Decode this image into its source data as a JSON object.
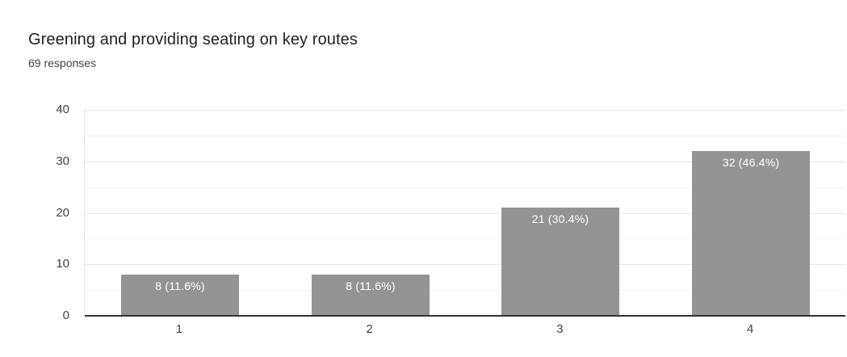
{
  "header": {
    "title": "Greening and providing seating on key routes",
    "subtitle": "69 responses"
  },
  "chart_data": {
    "type": "bar",
    "title": "Greening and providing seating on key routes",
    "subtitle": "69 responses",
    "categories": [
      "1",
      "2",
      "3",
      "4"
    ],
    "values": [
      8,
      8,
      21,
      32
    ],
    "bar_labels": [
      "8 (11.6%)",
      "8 (11.6%)",
      "21 (30.4%)",
      "32 (46.4%)"
    ],
    "total_responses": 69,
    "xlabel": "",
    "ylabel": "",
    "ylim": [
      0,
      40
    ],
    "yticks": [
      0,
      10,
      20,
      30,
      40
    ],
    "minor_yticks": [
      5,
      15,
      25,
      35
    ],
    "grid": true,
    "legend": "none",
    "colors": {
      "bar": "#949494",
      "bar_label_text": "#ffffff",
      "axis_line": "#333333",
      "gridline_major": "#e6e6e6",
      "gridline_minor": "#f4f4f4",
      "tick_label": "#424242",
      "title": "#212121",
      "subtitle": "#424242",
      "background": "#ffffff"
    }
  }
}
